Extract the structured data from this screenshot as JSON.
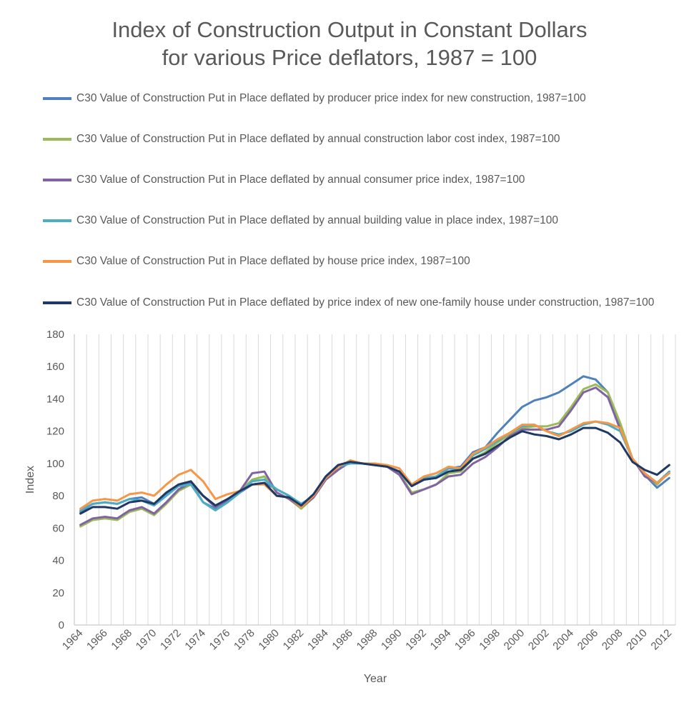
{
  "chart_data": {
    "type": "line",
    "title": [
      "Index of Construction Output in Constant Dollars",
      "for various Price deflators, 1987 = 100"
    ],
    "xlabel": "Year",
    "ylabel": "Index",
    "ylim": [
      0,
      180
    ],
    "yticks": [
      0,
      20,
      40,
      60,
      80,
      100,
      120,
      140,
      160,
      180
    ],
    "x": [
      1964,
      1965,
      1966,
      1967,
      1968,
      1969,
      1970,
      1971,
      1972,
      1973,
      1974,
      1975,
      1976,
      1977,
      1978,
      1979,
      1980,
      1981,
      1982,
      1983,
      1984,
      1985,
      1986,
      1987,
      1988,
      1989,
      1990,
      1991,
      1992,
      1993,
      1994,
      1995,
      1996,
      1997,
      1998,
      1999,
      2000,
      2001,
      2002,
      2003,
      2004,
      2005,
      2006,
      2007,
      2008,
      2009,
      2010,
      2011,
      2012
    ],
    "x_tick_labels": [
      "1964",
      "1966",
      "1968",
      "1970",
      "1972",
      "1974",
      "1976",
      "1978",
      "1980",
      "1982",
      "1984",
      "1986",
      "1988",
      "1990",
      "1992",
      "1994",
      "1996",
      "1998",
      "2000",
      "2002",
      "2004",
      "2006",
      "2008",
      "2010",
      "2012"
    ],
    "grid": "vertical",
    "legend_position": "top",
    "series": [
      {
        "name": "C30 Value of Construction Put in Place deflated by producer price index for new construction, 1987=100",
        "color": "#4F81BD",
        "values": [
          70,
          75,
          76,
          75,
          78,
          79,
          75,
          81,
          87,
          88,
          76,
          72,
          77,
          82,
          87,
          88,
          84,
          80,
          74,
          80,
          91,
          98,
          101,
          100,
          99,
          98,
          95,
          86,
          90,
          91,
          97,
          98,
          107,
          110,
          119,
          127,
          135,
          139,
          141,
          144,
          149,
          154,
          152,
          144,
          122,
          103,
          93,
          85,
          91
        ]
      },
      {
        "name": "C30 Value of Construction Put in Place deflated by annual construction labor cost index, 1987=100",
        "color": "#9BBB59",
        "values": [
          61,
          65,
          66,
          65,
          70,
          72,
          68,
          75,
          83,
          87,
          80,
          73,
          76,
          83,
          90,
          92,
          82,
          78,
          72,
          79,
          90,
          96,
          101,
          100,
          99,
          98,
          94,
          82,
          84,
          87,
          94,
          95,
          103,
          107,
          113,
          118,
          122,
          123,
          123,
          125,
          135,
          146,
          149,
          144,
          125,
          103,
          93,
          87,
          95
        ]
      },
      {
        "name": "C30 Value of Construction Put in Place deflated by annual consumer price index, 1987=100",
        "color": "#8064A2",
        "values": [
          62,
          66,
          67,
          66,
          71,
          73,
          69,
          76,
          84,
          88,
          80,
          73,
          77,
          83,
          94,
          95,
          82,
          78,
          73,
          79,
          90,
          96,
          101,
          100,
          99,
          98,
          93,
          81,
          84,
          87,
          92,
          93,
          100,
          104,
          110,
          117,
          121,
          121,
          121,
          123,
          133,
          144,
          147,
          141,
          121,
          103,
          92,
          88,
          94
        ]
      },
      {
        "name": "C30 Value of Construction Put in Place deflated by annual building value in place index, 1987=100",
        "color": "#4BACC6",
        "values": [
          71,
          75,
          76,
          75,
          78,
          77,
          74,
          80,
          86,
          87,
          76,
          71,
          76,
          82,
          89,
          90,
          84,
          80,
          75,
          80,
          91,
          98,
          100,
          100,
          99,
          98,
          95,
          87,
          91,
          92,
          97,
          96,
          105,
          109,
          114,
          119,
          123,
          124,
          120,
          118,
          120,
          124,
          126,
          124,
          120,
          103,
          94,
          88,
          95
        ]
      },
      {
        "name": "C30 Value of Construction Put in Place deflated by house price index, 1987=100",
        "color": "#F79646",
        "values": [
          72,
          77,
          78,
          77,
          81,
          82,
          80,
          87,
          93,
          96,
          89,
          78,
          81,
          83,
          87,
          87,
          80,
          79,
          73,
          80,
          91,
          98,
          102,
          100,
          100,
          99,
          97,
          87,
          92,
          94,
          98,
          97,
          106,
          110,
          115,
          119,
          124,
          124,
          120,
          117,
          121,
          125,
          126,
          125,
          122,
          103,
          94,
          88,
          94
        ]
      },
      {
        "name": "C30 Value of Construction Put in Place deflated by price index of new one-family house under construction, 1987=100",
        "color": "#1F3864",
        "values": [
          69,
          73,
          73,
          72,
          76,
          77,
          75,
          82,
          87,
          89,
          80,
          74,
          78,
          83,
          87,
          88,
          80,
          79,
          74,
          81,
          92,
          99,
          101,
          100,
          99,
          98,
          95,
          86,
          90,
          91,
          95,
          96,
          103,
          106,
          111,
          116,
          120,
          118,
          117,
          115,
          118,
          122,
          122,
          119,
          113,
          101,
          96,
          93,
          99
        ]
      }
    ]
  }
}
